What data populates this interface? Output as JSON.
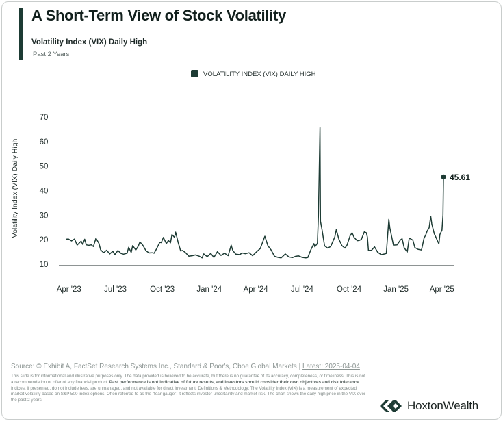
{
  "header": {
    "title": "A Short-Term View of Stock Volatility",
    "subtitle": "Volatility Index (VIX) Daily High",
    "period": "Past 2 Years"
  },
  "chart_data": {
    "type": "line",
    "title": "",
    "ylabel": "Volatility Index (VIX) Daily High",
    "xlabel": "",
    "ylim": [
      10,
      70
    ],
    "yticks": [
      10,
      20,
      30,
      40,
      50,
      60,
      70
    ],
    "x_range": [
      "2023-03-27",
      "2025-04-04"
    ],
    "xticks": [
      {
        "date": "2023-04-01",
        "label": "Apr '23"
      },
      {
        "date": "2023-07-01",
        "label": "Jul '23"
      },
      {
        "date": "2023-10-01",
        "label": "Oct '23"
      },
      {
        "date": "2024-01-01",
        "label": "Jan '24"
      },
      {
        "date": "2024-04-01",
        "label": "Apr '24"
      },
      {
        "date": "2024-07-01",
        "label": "Jul '24"
      },
      {
        "date": "2024-10-01",
        "label": "Oct '24"
      },
      {
        "date": "2025-01-01",
        "label": "Jan '25"
      },
      {
        "date": "2025-04-01",
        "label": "Apr '25"
      }
    ],
    "grid": false,
    "legend_position": "top-center",
    "series": [
      {
        "name": "VOLATILITY INDEX (VIX) DAILY HIGH",
        "color": "#1d3b34",
        "points": [
          [
            "2023-03-27",
            20.2
          ],
          [
            "2023-03-31",
            20.3
          ],
          [
            "2023-04-06",
            19.5
          ],
          [
            "2023-04-12",
            20.3
          ],
          [
            "2023-04-17",
            17.8
          ],
          [
            "2023-04-21",
            18.6
          ],
          [
            "2023-04-25",
            19.4
          ],
          [
            "2023-04-28",
            18.1
          ],
          [
            "2023-05-02",
            20.2
          ],
          [
            "2023-05-05",
            17.9
          ],
          [
            "2023-05-10",
            17.7
          ],
          [
            "2023-05-15",
            17.9
          ],
          [
            "2023-05-19",
            17.2
          ],
          [
            "2023-05-24",
            20.6
          ],
          [
            "2023-05-30",
            18.4
          ],
          [
            "2023-06-02",
            15.9
          ],
          [
            "2023-06-08",
            14.7
          ],
          [
            "2023-06-14",
            15.7
          ],
          [
            "2023-06-20",
            14.2
          ],
          [
            "2023-06-26",
            15.3
          ],
          [
            "2023-06-30",
            13.9
          ],
          [
            "2023-07-06",
            15.6
          ],
          [
            "2023-07-12",
            14.4
          ],
          [
            "2023-07-17",
            14.1
          ],
          [
            "2023-07-24",
            14.5
          ],
          [
            "2023-07-27",
            16.9
          ],
          [
            "2023-08-01",
            14.8
          ],
          [
            "2023-08-04",
            17.6
          ],
          [
            "2023-08-10",
            15.8
          ],
          [
            "2023-08-15",
            17.4
          ],
          [
            "2023-08-18",
            19.1
          ],
          [
            "2023-08-24",
            17.7
          ],
          [
            "2023-08-30",
            15.5
          ],
          [
            "2023-09-05",
            14.6
          ],
          [
            "2023-09-11",
            14.7
          ],
          [
            "2023-09-15",
            14.5
          ],
          [
            "2023-09-20",
            16.4
          ],
          [
            "2023-09-26",
            18.9
          ],
          [
            "2023-09-29",
            18.8
          ],
          [
            "2023-10-03",
            20.9
          ],
          [
            "2023-10-09",
            18.4
          ],
          [
            "2023-10-13",
            19.7
          ],
          [
            "2023-10-17",
            18.7
          ],
          [
            "2023-10-20",
            22.1
          ],
          [
            "2023-10-25",
            20.9
          ],
          [
            "2023-10-27",
            23.1
          ],
          [
            "2023-11-01",
            18.9
          ],
          [
            "2023-11-06",
            15.4
          ],
          [
            "2023-11-10",
            15.6
          ],
          [
            "2023-11-16",
            14.6
          ],
          [
            "2023-11-22",
            13.3
          ],
          [
            "2023-11-29",
            13.5
          ],
          [
            "2023-12-05",
            13.8
          ],
          [
            "2023-12-12",
            13.3
          ],
          [
            "2023-12-18",
            12.6
          ],
          [
            "2023-12-21",
            14.2
          ],
          [
            "2023-12-28",
            13.1
          ],
          [
            "2024-01-04",
            14.4
          ],
          [
            "2024-01-10",
            12.8
          ],
          [
            "2024-01-17",
            15.1
          ],
          [
            "2024-01-24",
            13.6
          ],
          [
            "2024-01-31",
            14.5
          ],
          [
            "2024-02-07",
            13.5
          ],
          [
            "2024-02-13",
            17.8
          ],
          [
            "2024-02-16",
            15.6
          ],
          [
            "2024-02-22",
            14.1
          ],
          [
            "2024-03-01",
            13.9
          ],
          [
            "2024-03-05",
            14.6
          ],
          [
            "2024-03-12",
            14.3
          ],
          [
            "2024-03-19",
            14.7
          ],
          [
            "2024-03-26",
            13.5
          ],
          [
            "2024-04-03",
            15.1
          ],
          [
            "2024-04-10",
            16.4
          ],
          [
            "2024-04-15",
            19.2
          ],
          [
            "2024-04-19",
            21.4
          ],
          [
            "2024-04-25",
            17.5
          ],
          [
            "2024-05-01",
            15.9
          ],
          [
            "2024-05-08",
            13.2
          ],
          [
            "2024-05-15",
            12.8
          ],
          [
            "2024-05-21",
            12.6
          ],
          [
            "2024-05-29",
            14.2
          ],
          [
            "2024-06-05",
            13.0
          ],
          [
            "2024-06-12",
            12.7
          ],
          [
            "2024-06-18",
            13.2
          ],
          [
            "2024-06-24",
            13.4
          ],
          [
            "2024-07-01",
            12.8
          ],
          [
            "2024-07-08",
            12.6
          ],
          [
            "2024-07-12",
            12.7
          ],
          [
            "2024-07-18",
            15.8
          ],
          [
            "2024-07-24",
            18.4
          ],
          [
            "2024-07-26",
            17.1
          ],
          [
            "2024-07-31",
            18.5
          ],
          [
            "2024-08-02",
            29.7
          ],
          [
            "2024-08-05",
            65.7
          ],
          [
            "2024-08-06",
            27.5
          ],
          [
            "2024-08-09",
            24.2
          ],
          [
            "2024-08-14",
            17.5
          ],
          [
            "2024-08-20",
            16.6
          ],
          [
            "2024-08-26",
            17.2
          ],
          [
            "2024-09-03",
            21.1
          ],
          [
            "2024-09-06",
            24.1
          ],
          [
            "2024-09-11",
            20.2
          ],
          [
            "2024-09-17",
            17.6
          ],
          [
            "2024-09-23",
            16.6
          ],
          [
            "2024-09-27",
            17.8
          ],
          [
            "2024-10-03",
            21.6
          ],
          [
            "2024-10-07",
            22.8
          ],
          [
            "2024-10-11",
            20.9
          ],
          [
            "2024-10-17",
            19.6
          ],
          [
            "2024-10-21",
            19.7
          ],
          [
            "2024-10-25",
            20.1
          ],
          [
            "2024-10-31",
            23.2
          ],
          [
            "2024-11-04",
            22.8
          ],
          [
            "2024-11-06",
            21.0
          ],
          [
            "2024-11-08",
            15.6
          ],
          [
            "2024-11-14",
            15.7
          ],
          [
            "2024-11-20",
            17.1
          ],
          [
            "2024-11-26",
            14.9
          ],
          [
            "2024-12-03",
            13.9
          ],
          [
            "2024-12-10",
            14.2
          ],
          [
            "2024-12-13",
            14.4
          ],
          [
            "2024-12-18",
            28.3
          ],
          [
            "2024-12-20",
            24.8
          ],
          [
            "2024-12-27",
            17.8
          ],
          [
            "2025-01-03",
            17.9
          ],
          [
            "2025-01-10",
            20.0
          ],
          [
            "2025-01-13",
            20.4
          ],
          [
            "2025-01-17",
            16.7
          ],
          [
            "2025-01-23",
            15.0
          ],
          [
            "2025-01-27",
            20.7
          ],
          [
            "2025-02-03",
            19.8
          ],
          [
            "2025-02-07",
            16.8
          ],
          [
            "2025-02-13",
            16.1
          ],
          [
            "2025-02-20",
            15.8
          ],
          [
            "2025-02-25",
            20.7
          ],
          [
            "2025-02-28",
            21.8
          ],
          [
            "2025-03-03",
            23.5
          ],
          [
            "2025-03-07",
            24.9
          ],
          [
            "2025-03-10",
            29.6
          ],
          [
            "2025-03-12",
            26.5
          ],
          [
            "2025-03-17",
            22.4
          ],
          [
            "2025-03-21",
            20.6
          ],
          [
            "2025-03-26",
            18.3
          ],
          [
            "2025-03-28",
            22.1
          ],
          [
            "2025-04-01",
            23.9
          ],
          [
            "2025-04-03",
            30.1
          ],
          [
            "2025-04-04",
            45.61
          ]
        ]
      }
    ],
    "annotations": [
      {
        "date": "2025-04-04",
        "value": 45.61,
        "label": "45.61"
      }
    ]
  },
  "footer": {
    "source_text": "Source: © Exhibit A, FactSet Research Systems Inc., Standard & Poor's, Cboe Global Markets | ",
    "latest_text": "Latest: 2025-04-04",
    "disclaimer_1": "This slide is for informational and illustrative purposes only. The data provided is believed to be accurate, but there is no guarantee of its accuracy, completeness, or timeliness. This is not a recommendation or offer of any financial product. ",
    "disclaimer_bold": "Past performance is not indicative of future results, and investors should consider their own objectives and risk tolerance.",
    "disclaimer_2": " Indices, if presented, do not include fees, are unmanaged, and not available for direct investment. Definitions & Methodology: The Volatility Index (VIX) is a measurement of expected market volatility based on S&P 500 index options. Often referred to as the \"fear gauge\", it reflects investor uncertainty and market risk. The chart shows the daily high price in the VIX over the past 2 years."
  },
  "brand": {
    "name": "HoxtonWealth",
    "logo_icon": "hoxton-chevron-logo",
    "color": "#1d3b34"
  }
}
